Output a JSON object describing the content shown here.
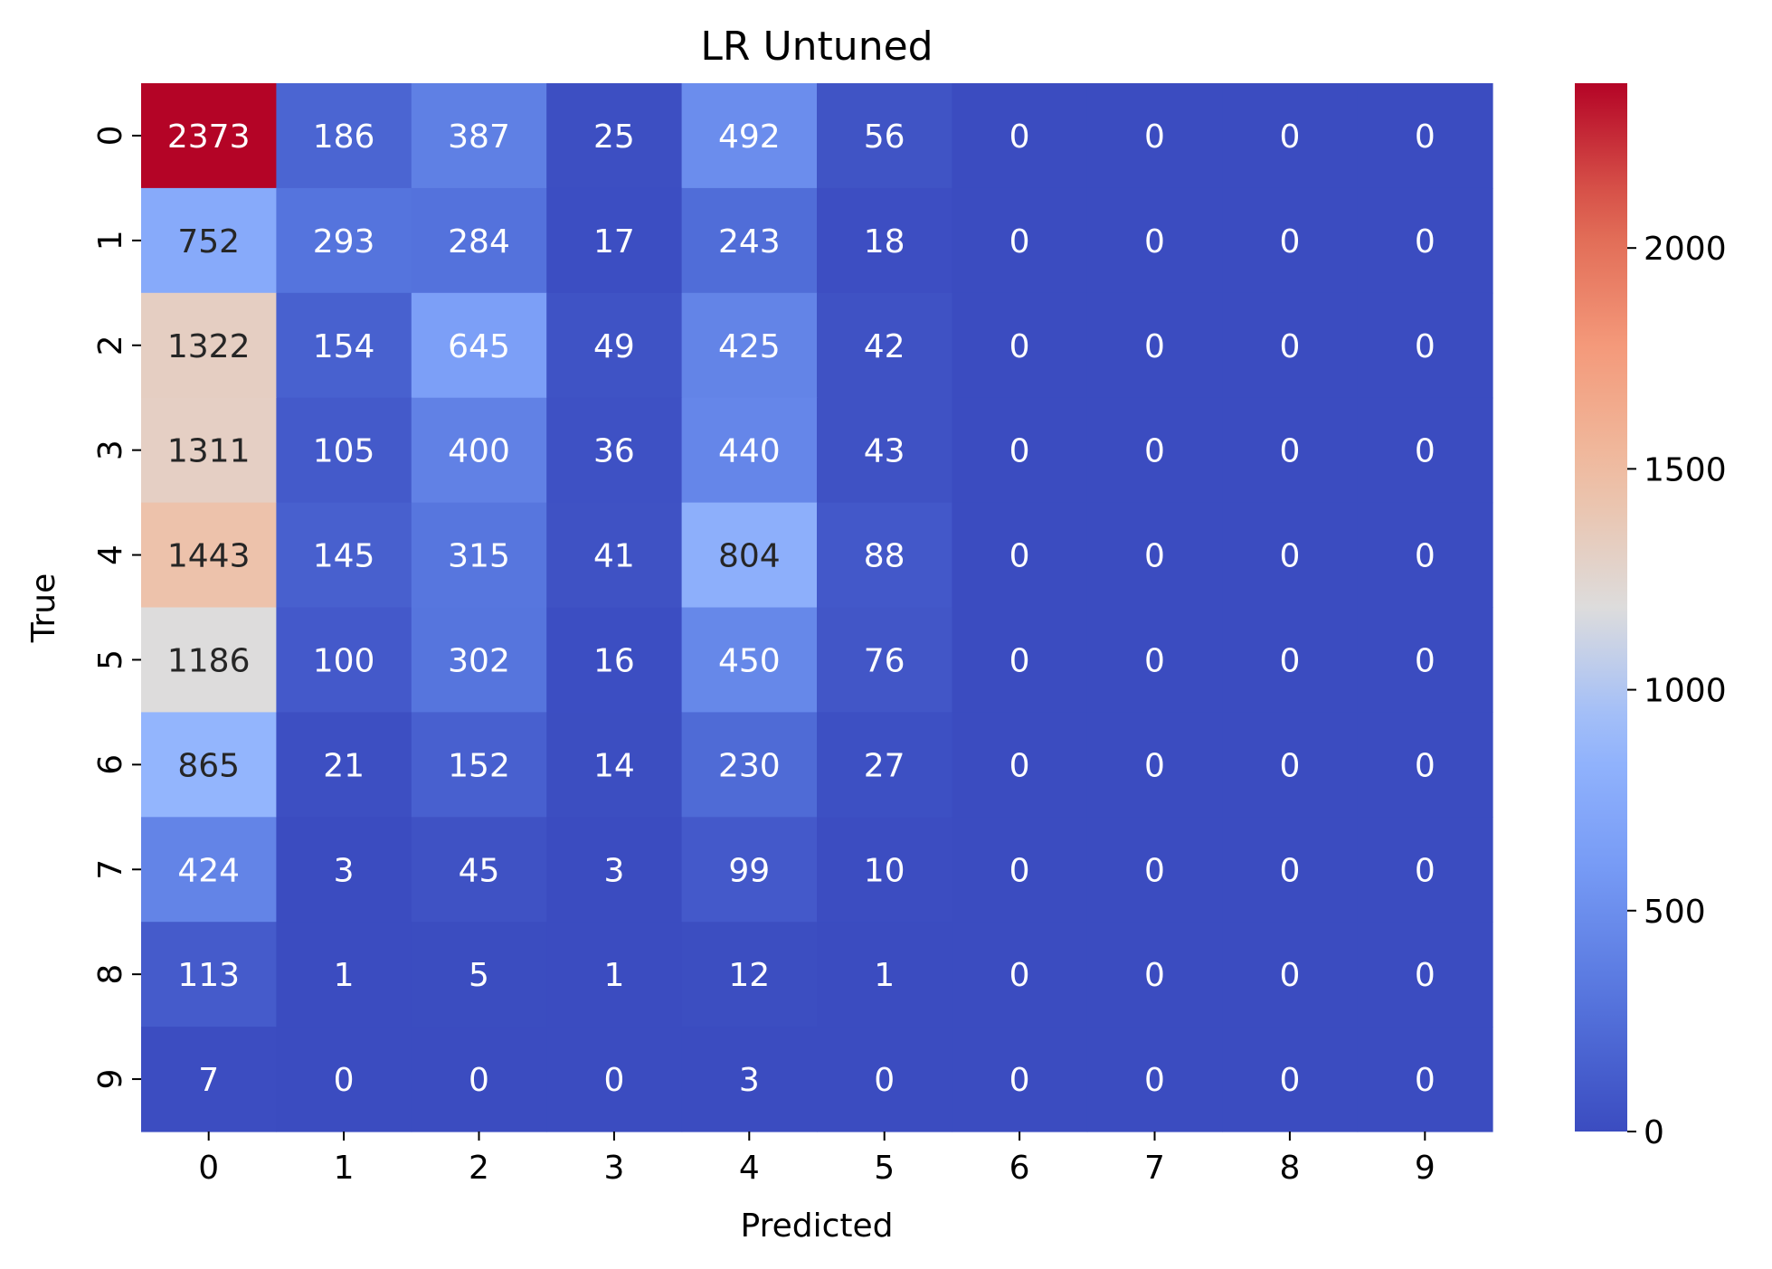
{
  "chart_data": {
    "type": "heatmap",
    "title": "LR Untuned",
    "xlabel": "Predicted",
    "ylabel": "True",
    "x_categories": [
      "0",
      "1",
      "2",
      "3",
      "4",
      "5",
      "6",
      "7",
      "8",
      "9"
    ],
    "y_categories": [
      "0",
      "1",
      "2",
      "3",
      "4",
      "5",
      "6",
      "7",
      "8",
      "9"
    ],
    "values": [
      [
        2373,
        186,
        387,
        25,
        492,
        56,
        0,
        0,
        0,
        0
      ],
      [
        752,
        293,
        284,
        17,
        243,
        18,
        0,
        0,
        0,
        0
      ],
      [
        1322,
        154,
        645,
        49,
        425,
        42,
        0,
        0,
        0,
        0
      ],
      [
        1311,
        105,
        400,
        36,
        440,
        43,
        0,
        0,
        0,
        0
      ],
      [
        1443,
        145,
        315,
        41,
        804,
        88,
        0,
        0,
        0,
        0
      ],
      [
        1186,
        100,
        302,
        16,
        450,
        76,
        0,
        0,
        0,
        0
      ],
      [
        865,
        21,
        152,
        14,
        230,
        27,
        0,
        0,
        0,
        0
      ],
      [
        424,
        3,
        45,
        3,
        99,
        10,
        0,
        0,
        0,
        0
      ],
      [
        113,
        1,
        5,
        1,
        12,
        1,
        0,
        0,
        0,
        0
      ],
      [
        7,
        0,
        0,
        0,
        3,
        0,
        0,
        0,
        0,
        0
      ]
    ],
    "colormap": "coolwarm",
    "colorbar": {
      "min": 0,
      "max": 2373,
      "ticks": [
        0,
        500,
        1000,
        1500,
        2000
      ],
      "tick_labels": [
        "0",
        "500",
        "1000",
        "1500",
        "2000"
      ]
    },
    "grid": false,
    "legend": "colorbar-right"
  }
}
